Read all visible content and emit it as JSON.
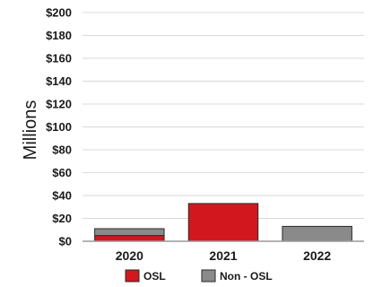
{
  "chart_data": {
    "type": "bar",
    "stacked": true,
    "title": "",
    "xlabel": "",
    "ylabel": "Millions",
    "ylim": [
      0,
      200
    ],
    "yticks": [
      "$0",
      "$20",
      "$40",
      "$60",
      "$80",
      "$100",
      "$120",
      "$140",
      "$160",
      "$180",
      "$200"
    ],
    "categories": [
      "2020",
      "2021",
      "2022"
    ],
    "series": [
      {
        "name": "OSL",
        "color": "#d3171e",
        "values": [
          5,
          33,
          0
        ]
      },
      {
        "name": "Non - OSL",
        "color": "#8a8a8a",
        "values": [
          6,
          0,
          13
        ]
      }
    ],
    "grid": true,
    "legend_position": "bottom"
  }
}
